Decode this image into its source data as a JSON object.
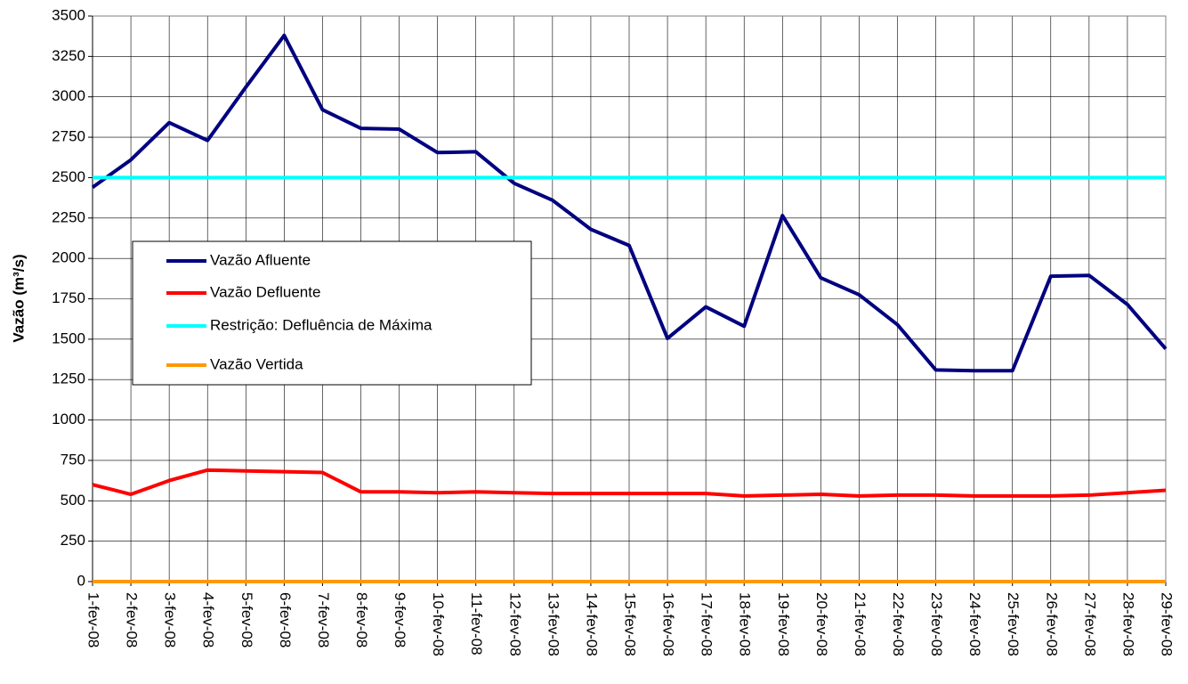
{
  "chart_data": {
    "type": "line",
    "y_label": "Vazão (m³/s)",
    "categories": [
      "1-fev-08",
      "2-fev-08",
      "3-fev-08",
      "4-fev-08",
      "5-fev-08",
      "6-fev-08",
      "7-fev-08",
      "8-fev-08",
      "9-fev-08",
      "10-fev-08",
      "11-fev-08",
      "12-fev-08",
      "13-fev-08",
      "14-fev-08",
      "15-fev-08",
      "16-fev-08",
      "17-fev-08",
      "18-fev-08",
      "19-fev-08",
      "20-fev-08",
      "21-fev-08",
      "22-fev-08",
      "23-fev-08",
      "24-fev-08",
      "25-fev-08",
      "26-fev-08",
      "27-fev-08",
      "28-fev-08",
      "29-fev-08"
    ],
    "series": [
      {
        "name": "Vazão Afluente",
        "color": "#000080",
        "values": [
          2440,
          2610,
          2840,
          2730,
          3060,
          3380,
          2920,
          2805,
          2800,
          2655,
          2660,
          2465,
          2360,
          2180,
          2080,
          1505,
          1700,
          1580,
          2265,
          1880,
          1775,
          1590,
          1310,
          1305,
          1305,
          1890,
          1895,
          1715,
          1440
        ]
      },
      {
        "name": "Vazão Defluente",
        "color": "#ff0000",
        "values": [
          600,
          540,
          625,
          690,
          685,
          680,
          675,
          555,
          555,
          550,
          555,
          550,
          545,
          545,
          545,
          545,
          545,
          530,
          535,
          540,
          530,
          535,
          535,
          530,
          530,
          530,
          535,
          550,
          565
        ]
      },
      {
        "name": "Restrição: Defluência de Máxima",
        "color": "#00ffff",
        "values": [
          2500,
          2500,
          2500,
          2500,
          2500,
          2500,
          2500,
          2500,
          2500,
          2500,
          2500,
          2500,
          2500,
          2500,
          2500,
          2500,
          2500,
          2500,
          2500,
          2500,
          2500,
          2500,
          2500,
          2500,
          2500,
          2500,
          2500,
          2500,
          2500
        ]
      },
      {
        "name": "Vazão Vertida",
        "color": "#ff9900",
        "values": [
          0,
          0,
          0,
          0,
          0,
          0,
          0,
          0,
          0,
          0,
          0,
          0,
          0,
          0,
          0,
          0,
          0,
          0,
          0,
          0,
          0,
          0,
          0,
          0,
          0,
          0,
          0,
          0,
          0
        ]
      }
    ],
    "ylim": [
      0,
      3500
    ],
    "yticks": [
      0,
      250,
      500,
      750,
      1000,
      1250,
      1500,
      1750,
      2000,
      2250,
      2500,
      2750,
      3000,
      3250,
      3500
    ],
    "grid": true,
    "legend": "left"
  }
}
